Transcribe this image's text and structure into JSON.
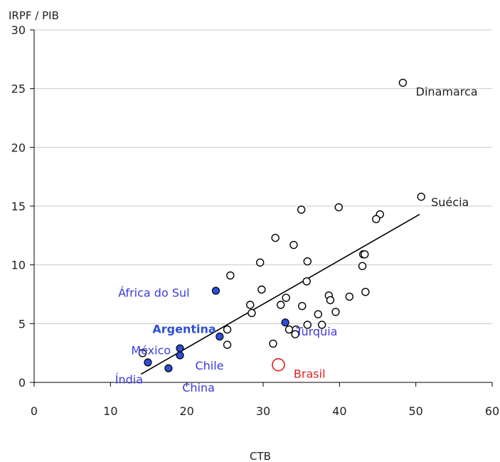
{
  "chart_data": {
    "type": "scatter",
    "xlabel": "CTB",
    "ylabel": "IRPF / PIB",
    "xlim": [
      0,
      60
    ],
    "ylim": [
      0,
      30
    ],
    "x_ticks": [
      0,
      10,
      20,
      30,
      40,
      50,
      60
    ],
    "y_ticks": [
      0,
      5,
      10,
      15,
      20,
      25,
      30
    ],
    "grid": "horizontal",
    "colors": {
      "open_point": "#000000",
      "highlight_fill": "#2e4fd6",
      "highlight_label": "#3b3bd9",
      "brasil": "#e02020",
      "trendline": "#000000"
    },
    "trendline": {
      "x": [
        14,
        50.5
      ],
      "y": [
        0.7,
        14.3
      ]
    },
    "points": [
      {
        "x": 48.3,
        "y": 25.5
      },
      {
        "x": 50.7,
        "y": 15.8
      },
      {
        "x": 35.0,
        "y": 14.7
      },
      {
        "x": 39.9,
        "y": 14.9
      },
      {
        "x": 45.3,
        "y": 14.3
      },
      {
        "x": 44.8,
        "y": 13.9
      },
      {
        "x": 31.6,
        "y": 12.3
      },
      {
        "x": 34.0,
        "y": 11.7
      },
      {
        "x": 43.1,
        "y": 10.9
      },
      {
        "x": 43.3,
        "y": 10.9
      },
      {
        "x": 35.8,
        "y": 10.3
      },
      {
        "x": 29.6,
        "y": 10.2
      },
      {
        "x": 43.0,
        "y": 9.9
      },
      {
        "x": 25.7,
        "y": 9.1
      },
      {
        "x": 35.7,
        "y": 8.6
      },
      {
        "x": 29.8,
        "y": 7.9
      },
      {
        "x": 43.4,
        "y": 7.7
      },
      {
        "x": 38.6,
        "y": 7.4
      },
      {
        "x": 41.3,
        "y": 7.3
      },
      {
        "x": 33.0,
        "y": 7.2
      },
      {
        "x": 38.8,
        "y": 7.0
      },
      {
        "x": 28.3,
        "y": 6.6
      },
      {
        "x": 32.3,
        "y": 6.6
      },
      {
        "x": 35.1,
        "y": 6.5
      },
      {
        "x": 28.5,
        "y": 5.9
      },
      {
        "x": 39.5,
        "y": 6.0
      },
      {
        "x": 37.2,
        "y": 5.8
      },
      {
        "x": 35.8,
        "y": 4.9
      },
      {
        "x": 37.7,
        "y": 4.9
      },
      {
        "x": 33.4,
        "y": 4.5
      },
      {
        "x": 34.3,
        "y": 4.5
      },
      {
        "x": 34.2,
        "y": 4.1
      },
      {
        "x": 25.3,
        "y": 4.5
      },
      {
        "x": 25.3,
        "y": 3.2
      },
      {
        "x": 31.3,
        "y": 3.3
      },
      {
        "x": 14.2,
        "y": 2.5
      }
    ],
    "highlighted": [
      {
        "name": "África do Sul",
        "x": 23.8,
        "y": 7.8
      },
      {
        "name": "Argentina",
        "x": 24.3,
        "y": 3.9
      },
      {
        "name": "Turquia",
        "x": 32.9,
        "y": 5.1
      },
      {
        "name": "México",
        "x": 19.1,
        "y": 2.9
      },
      {
        "name": "México",
        "x": 19.1,
        "y": 2.3
      },
      {
        "name": "Índia",
        "x": 14.9,
        "y": 1.7
      },
      {
        "name": "China",
        "x": 17.6,
        "y": 1.2
      }
    ],
    "labels": [
      {
        "text": "Dinamarca",
        "x": 50.0,
        "y": 24.4,
        "color": "#222222",
        "anchor": "start"
      },
      {
        "text": "Suécia",
        "x": 52.0,
        "y": 15.0,
        "color": "#222222",
        "anchor": "start"
      },
      {
        "text": "África do Sul",
        "x": 11.0,
        "y": 7.3,
        "color": "#3b3bd9",
        "anchor": "start"
      },
      {
        "text": "Argentina",
        "x": 15.5,
        "y": 4.2,
        "color": "#2e4fd6",
        "anchor": "start",
        "bold": true
      },
      {
        "text": "Turquia",
        "x": 34.3,
        "y": 4.0,
        "color": "#3b3bd9",
        "anchor": "start"
      },
      {
        "text": "México",
        "x": 12.7,
        "y": 2.4,
        "color": "#3b3bd9",
        "anchor": "start"
      },
      {
        "text": "Chile",
        "x": 21.1,
        "y": 1.1,
        "color": "#3b3bd9",
        "anchor": "start"
      },
      {
        "text": "Índia",
        "x": 10.6,
        "y": -0.1,
        "color": "#3b3bd9",
        "anchor": "start"
      },
      {
        "text": "China",
        "x": 19.4,
        "y": -0.8,
        "color": "#3b3bd9",
        "anchor": "start"
      },
      {
        "text": "Brasil",
        "x": 34.0,
        "y": 0.4,
        "color": "#e02020",
        "anchor": "start"
      }
    ],
    "brasil_point": {
      "name": "Brasil",
      "x": 32.0,
      "y": 1.5
    }
  }
}
